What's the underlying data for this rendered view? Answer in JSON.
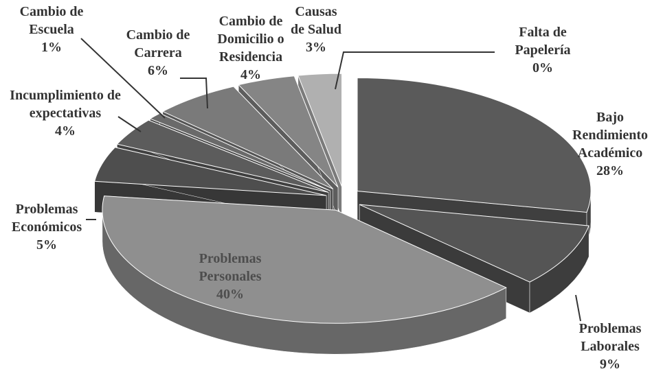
{
  "chart_data": {
    "type": "pie3d",
    "categories": [
      "Falta de Papelería",
      "Bajo Rendimiento Académico",
      "Problemas Laborales",
      "Problemas Personales",
      "Problemas Económicos",
      "Incumplimiento de expectativas",
      "Cambio de Escuela",
      "Cambio de Carrera",
      "Cambio de Domicilio o Residencia",
      "Causas de Salud"
    ],
    "values": [
      0,
      28,
      9,
      40,
      5,
      4,
      1,
      6,
      4,
      3
    ],
    "value_labels": [
      "0%",
      "28%",
      "9%",
      "40%",
      "5%",
      "4%",
      "1%",
      "6%",
      "4%",
      "3%"
    ],
    "colors": [
      "#9a9a9a",
      "#5a5a5a",
      "#555555",
      "#8f8f8f",
      "#4e4e4e",
      "#5c5c5c",
      "#6a6a6a",
      "#7a7a7a",
      "#858585",
      "#b0b0b0"
    ]
  }
}
